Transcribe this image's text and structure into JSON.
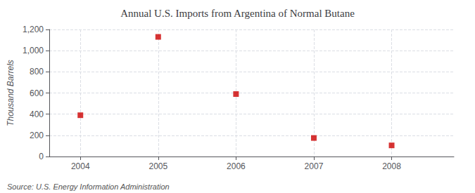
{
  "chart_data": {
    "type": "scatter",
    "title": "Annual U.S. Imports from Argentina of Normal Butane",
    "ylabel": "Thousand Barrels",
    "annotations": [
      "Source: U.S. Energy Information Administration"
    ],
    "x": [
      2004,
      2005,
      2006,
      2007,
      2008
    ],
    "values": [
      390,
      1130,
      590,
      175,
      105
    ],
    "color": "#cc0000",
    "marker": "square",
    "xlim": [
      2003.6,
      2008.8
    ],
    "xticks": [
      2004,
      2005,
      2006,
      2007,
      2008
    ],
    "ylim": [
      0,
      1200
    ],
    "yticks": [
      0,
      200,
      400,
      600,
      {
        "value": 800,
        "label": "800"
      },
      {
        "value": 1000,
        "label": "1,000"
      },
      {
        "value": 1200,
        "label": "1,200"
      }
    ],
    "grid": true
  }
}
